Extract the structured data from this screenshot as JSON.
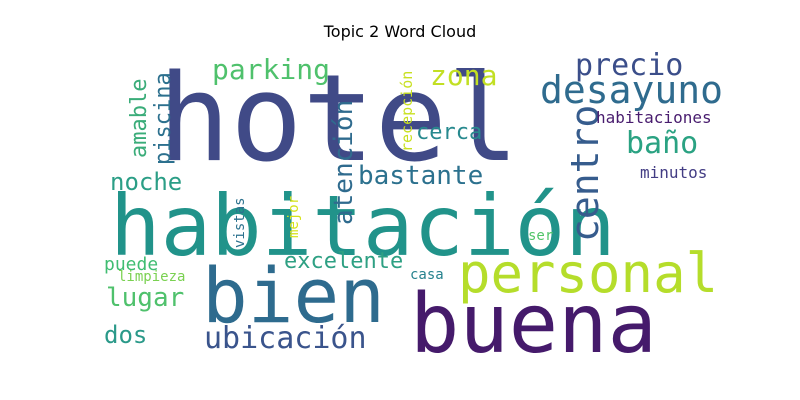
{
  "chart_data": {
    "type": "wordcloud",
    "title": "Topic 2 Word Cloud",
    "words": [
      {
        "text": "hotel",
        "color": "#404a87"
      },
      {
        "text": "habitación",
        "color": "#21938a"
      },
      {
        "text": "bien",
        "color": "#2e6b8e"
      },
      {
        "text": "buena",
        "color": "#451a6b"
      },
      {
        "text": "personal",
        "color": "#b5dd2b"
      },
      {
        "text": "desayuno",
        "color": "#2f6b8e"
      },
      {
        "text": "centro",
        "color": "#365c8d"
      },
      {
        "text": "precio",
        "color": "#3b4e8a"
      },
      {
        "text": "ubicación",
        "color": "#3a548c"
      },
      {
        "text": "zona",
        "color": "#c2df23"
      },
      {
        "text": "baño",
        "color": "#2aa282"
      },
      {
        "text": "parking",
        "color": "#4fc16c"
      },
      {
        "text": "atención",
        "color": "#2f6b8e"
      },
      {
        "text": "bastante",
        "color": "#2c718e"
      },
      {
        "text": "excelente",
        "color": "#2ea083"
      },
      {
        "text": "lugar",
        "color": "#4fc16c"
      },
      {
        "text": "noche",
        "color": "#2b9e86"
      },
      {
        "text": "amable",
        "color": "#3aac79"
      },
      {
        "text": "piscina",
        "color": "#2c708e"
      },
      {
        "text": "dos",
        "color": "#2a9989"
      },
      {
        "text": "cerca",
        "color": "#27898e"
      },
      {
        "text": "puede",
        "color": "#40bd72"
      },
      {
        "text": "habitaciones",
        "color": "#481c6e"
      },
      {
        "text": "recepción",
        "color": "#c8e020"
      },
      {
        "text": "minutos",
        "color": "#433d84"
      },
      {
        "text": "vistas",
        "color": "#2c728e"
      },
      {
        "text": "mejor",
        "color": "#d5e21a"
      },
      {
        "text": "limpieza",
        "color": "#7ad151"
      },
      {
        "text": "ser",
        "color": "#52c569"
      },
      {
        "text": "casa",
        "color": "#26828e"
      }
    ]
  }
}
